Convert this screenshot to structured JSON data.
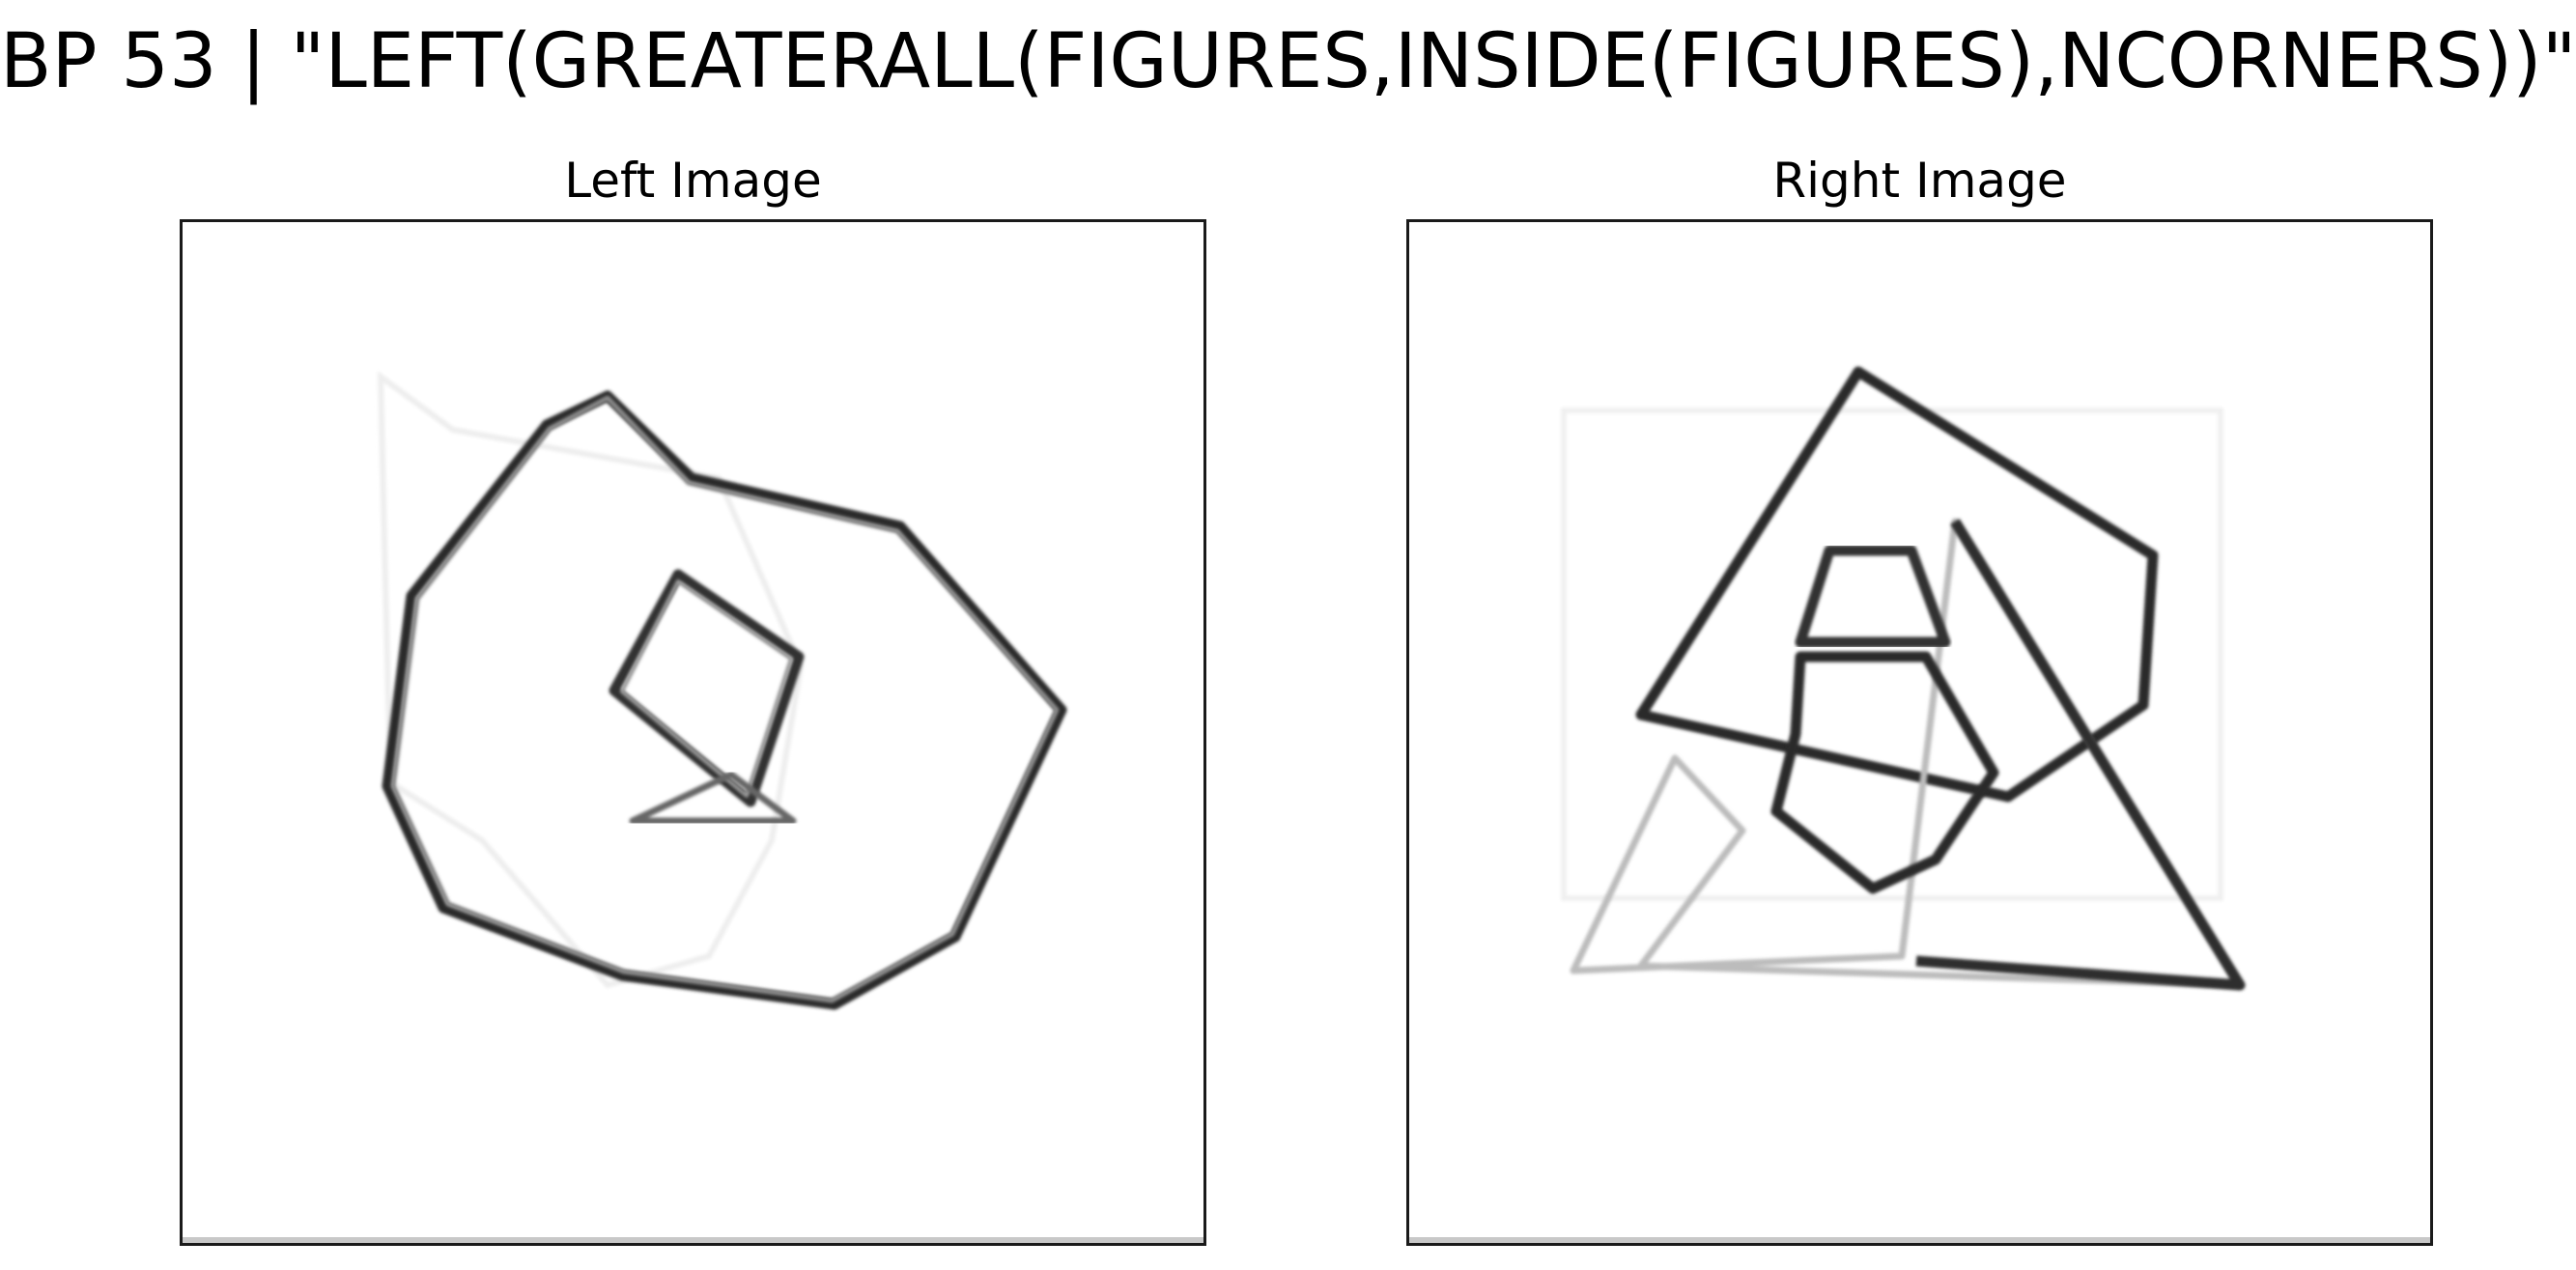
{
  "figure": {
    "title": "BP 53 | \"LEFT(GREATERALL(FIGURES,INSIDE(FIGURES),NCORNERS))\""
  },
  "panels": [
    {
      "title": "Left Image"
    },
    {
      "title": "Right Image"
    }
  ],
  "colors": {
    "background": "#ffffff",
    "stroke": "#2a2a2a",
    "frame": "#1a1a1a"
  }
}
